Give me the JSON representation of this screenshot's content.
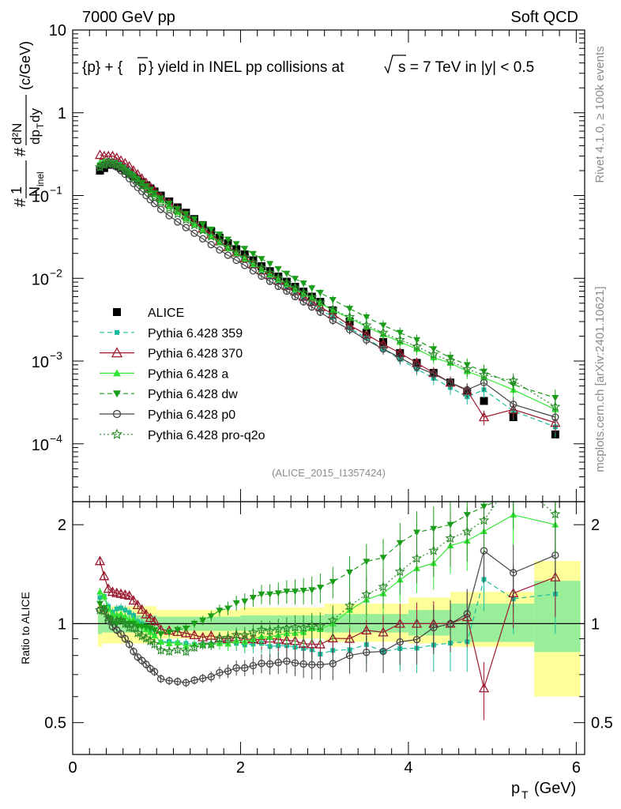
{
  "header": {
    "left": "7000 GeV pp",
    "right": "Soft QCD",
    "side_top": "Rivet 4.1.0, ≥ 100k events",
    "side_bottom": "mcplots.cern.ch [arXiv:2401.10621]",
    "analysis_id": "(ALICE_2015_I1357424)"
  },
  "colors": {
    "ALICE": "#000000",
    "p359": "#1abc9c",
    "p370": "#9b1b30",
    "pa": "#33e633",
    "pdw": "#1a9e1a",
    "pp0": "#444444",
    "pq2o": "#2a8a2a",
    "band_yellow": "#ffff99",
    "band_green": "#99ee99"
  },
  "chart_data": [
    {
      "type": "scatter",
      "panel": "main",
      "title": "{p} + {p̅} yield in INEL pp collisions at √s = 7 TeV in |y| < 0.5",
      "title_parts": {
        "a": "{p} + {",
        "b": "p",
        "c": "} yield in INEL pp collisions at",
        "d": "s =  7 TeV in |y| < 0.5"
      },
      "xlabel": "p_T (GeV)",
      "xlabel_parts": {
        "p": "p",
        "sub": "T",
        "unit": "(GeV)"
      },
      "ylabel": "1/N_inel d²N/dp_T dy (c/GeV)",
      "ylabel_parts": {
        "one": "1",
        "ninel": "N",
        "ninel_sub": "inel",
        "d2n": "d²N",
        "dpt": "dp",
        "dpt_sub": "T",
        "dy": "dy",
        "unit": "(c/GeV)",
        "hash": "#"
      },
      "xlim": [
        0,
        6.1
      ],
      "ylim": [
        2e-05,
        10
      ],
      "yscale": "log",
      "yticks": [
        {
          "v": 10,
          "t": "10"
        },
        {
          "v": 1,
          "t": "1"
        },
        {
          "v": 0.1,
          "b": "10",
          "e": "−1"
        },
        {
          "v": 0.01,
          "b": "10",
          "e": "−2"
        },
        {
          "v": 0.001,
          "b": "10",
          "e": "−3"
        },
        {
          "v": 0.0001,
          "b": "10",
          "e": "−4"
        }
      ],
      "x": [
        0.325,
        0.375,
        0.425,
        0.475,
        0.525,
        0.575,
        0.625,
        0.675,
        0.725,
        0.775,
        0.825,
        0.875,
        0.925,
        0.975,
        1.05,
        1.15,
        1.25,
        1.35,
        1.45,
        1.55,
        1.65,
        1.75,
        1.85,
        1.95,
        2.05,
        2.15,
        2.25,
        2.35,
        2.45,
        2.55,
        2.65,
        2.75,
        2.85,
        2.95,
        3.1,
        3.3,
        3.5,
        3.7,
        3.9,
        4.1,
        4.3,
        4.5,
        4.7,
        4.9,
        5.25,
        5.75
      ],
      "series": [
        {
          "name": "ALICE",
          "key": "ALICE",
          "marker": "square",
          "line": "none",
          "values": [
            0.2,
            0.215,
            0.235,
            0.24,
            0.23,
            0.215,
            0.2,
            0.185,
            0.17,
            0.158,
            0.145,
            0.133,
            0.122,
            0.112,
            0.1,
            0.085,
            0.072,
            0.062,
            0.052,
            0.044,
            0.037,
            0.031,
            0.0265,
            0.0225,
            0.0195,
            0.0165,
            0.014,
            0.0122,
            0.0105,
            0.0091,
            0.0079,
            0.0069,
            0.006,
            0.0052,
            0.0041,
            0.003,
            0.0022,
            0.0017,
            0.00125,
            0.00095,
            0.00072,
            0.00055,
            0.00042,
            0.00033,
            0.00021,
            0.00013
          ]
        },
        {
          "name": "Pythia 6.428 359",
          "key": "p359",
          "marker": "smallsquare",
          "line": "dash",
          "values": [
            0.24,
            0.26,
            0.265,
            0.26,
            0.255,
            0.24,
            0.22,
            0.2,
            0.18,
            0.16,
            0.145,
            0.13,
            0.115,
            0.103,
            0.088,
            0.075,
            0.063,
            0.054,
            0.045,
            0.038,
            0.032,
            0.027,
            0.023,
            0.0196,
            0.0168,
            0.0143,
            0.0122,
            0.0104,
            0.009,
            0.0078,
            0.0067,
            0.0058,
            0.005,
            0.0042,
            0.0034,
            0.0025,
            0.0019,
            0.0014,
            0.00105,
            0.0008,
            0.00062,
            0.00048,
            0.00037,
            0.00045,
            0.00025,
            0.00016
          ]
        },
        {
          "name": "Pythia 6.428 370",
          "key": "p370",
          "marker": "triangle-open",
          "line": "solid",
          "values": [
            0.31,
            0.3,
            0.3,
            0.3,
            0.285,
            0.265,
            0.245,
            0.225,
            0.2,
            0.18,
            0.16,
            0.142,
            0.127,
            0.114,
            0.096,
            0.081,
            0.068,
            0.058,
            0.048,
            0.04,
            0.034,
            0.028,
            0.0238,
            0.0205,
            0.0175,
            0.0148,
            0.0125,
            0.011,
            0.0094,
            0.0081,
            0.007,
            0.006,
            0.0052,
            0.0045,
            0.0037,
            0.0027,
            0.0021,
            0.0016,
            0.00125,
            0.00095,
            0.00072,
            0.00055,
            0.00044,
            0.00021,
            0.00026,
            0.00018
          ]
        },
        {
          "name": "Pythia 6.428 a",
          "key": "pa",
          "marker": "triangle",
          "line": "solid",
          "values": [
            0.25,
            0.26,
            0.26,
            0.255,
            0.245,
            0.23,
            0.21,
            0.19,
            0.175,
            0.158,
            0.143,
            0.128,
            0.115,
            0.103,
            0.088,
            0.074,
            0.063,
            0.053,
            0.045,
            0.038,
            0.032,
            0.027,
            0.023,
            0.02,
            0.0172,
            0.0148,
            0.0128,
            0.0111,
            0.0097,
            0.0085,
            0.0074,
            0.0065,
            0.0058,
            0.005,
            0.0041,
            0.0033,
            0.0026,
            0.0021,
            0.0017,
            0.0014,
            0.0011,
            0.00095,
            0.00075,
            0.00063,
            0.00045,
            0.00026
          ]
        },
        {
          "name": "Pythia 6.428 dw",
          "key": "pdw",
          "marker": "triangle-down",
          "line": "dash",
          "values": [
            0.23,
            0.24,
            0.245,
            0.24,
            0.23,
            0.22,
            0.2,
            0.185,
            0.17,
            0.155,
            0.142,
            0.13,
            0.118,
            0.107,
            0.093,
            0.08,
            0.069,
            0.06,
            0.052,
            0.045,
            0.039,
            0.034,
            0.0295,
            0.026,
            0.0228,
            0.0198,
            0.0172,
            0.015,
            0.013,
            0.0114,
            0.0099,
            0.0087,
            0.0076,
            0.0067,
            0.0055,
            0.0043,
            0.0034,
            0.0027,
            0.0022,
            0.0018,
            0.0014,
            0.0011,
            0.0009,
            0.00075,
            0.00052,
            0.00036
          ]
        },
        {
          "name": "Pythia 6.428 p0",
          "key": "pp0",
          "marker": "circle-open",
          "line": "solid",
          "values": [
            0.22,
            0.235,
            0.24,
            0.235,
            0.22,
            0.2,
            0.18,
            0.16,
            0.14,
            0.125,
            0.112,
            0.1,
            0.089,
            0.08,
            0.068,
            0.057,
            0.048,
            0.041,
            0.035,
            0.03,
            0.0255,
            0.022,
            0.019,
            0.0165,
            0.0143,
            0.0123,
            0.0106,
            0.0092,
            0.008,
            0.007,
            0.006,
            0.0052,
            0.0045,
            0.0039,
            0.0031,
            0.0024,
            0.0018,
            0.0014,
            0.0011,
            0.00085,
            0.0007,
            0.00055,
            0.00045,
            0.00055,
            0.0003,
            0.00021
          ]
        },
        {
          "name": "Pythia 6.428 pro-q2o",
          "key": "pq2o",
          "marker": "star",
          "line": "dot",
          "values": [
            0.22,
            0.235,
            0.245,
            0.245,
            0.235,
            0.22,
            0.2,
            0.18,
            0.165,
            0.148,
            0.133,
            0.12,
            0.108,
            0.097,
            0.083,
            0.07,
            0.06,
            0.051,
            0.044,
            0.038,
            0.032,
            0.028,
            0.024,
            0.0208,
            0.018,
            0.0155,
            0.0134,
            0.0116,
            0.0101,
            0.0088,
            0.0077,
            0.0067,
            0.0059,
            0.0051,
            0.0042,
            0.0034,
            0.0027,
            0.0022,
            0.0018,
            0.0015,
            0.0012,
            0.001,
            0.0008,
            0.00068,
            0.00058,
            0.00028
          ]
        }
      ],
      "legend": [
        "ALICE",
        "Pythia 6.428 359",
        "Pythia 6.428 370",
        "Pythia 6.428 a",
        "Pythia 6.428 dw",
        "Pythia 6.428 p0",
        "Pythia 6.428 pro-q2o"
      ]
    },
    {
      "type": "scatter",
      "panel": "ratio",
      "ylabel": "Ratio to ALICE",
      "xlabel": "p_T (GeV)",
      "xlim": [
        0,
        6.1
      ],
      "ylim": [
        0.4,
        2.35
      ],
      "yscale": "log",
      "yticks": [
        {
          "v": 0.5,
          "t": "0.5"
        },
        {
          "v": 1,
          "t": "1"
        },
        {
          "v": 2,
          "t": "2"
        }
      ],
      "xticks": [
        {
          "v": 0,
          "t": "0"
        },
        {
          "v": 2,
          "t": "2"
        },
        {
          "v": 4,
          "t": "4"
        },
        {
          "v": 6,
          "t": "6"
        }
      ],
      "reference_line": 1,
      "uncertainty_bands": [
        {
          "x0": 0.3,
          "x1": 0.35,
          "yellow": [
            0.85,
            1.15
          ],
          "green": [
            0.93,
            1.07
          ]
        },
        {
          "x0": 0.35,
          "x1": 1.0,
          "yellow": [
            0.87,
            1.13
          ],
          "green": [
            0.94,
            1.06
          ]
        },
        {
          "x0": 1.0,
          "x1": 2.0,
          "yellow": [
            0.9,
            1.1
          ],
          "green": [
            0.95,
            1.05
          ]
        },
        {
          "x0": 2.0,
          "x1": 3.0,
          "yellow": [
            0.9,
            1.12
          ],
          "green": [
            0.95,
            1.06
          ]
        },
        {
          "x0": 3.0,
          "x1": 4.0,
          "yellow": [
            0.88,
            1.15
          ],
          "green": [
            0.94,
            1.07
          ]
        },
        {
          "x0": 4.0,
          "x1": 4.5,
          "yellow": [
            0.87,
            1.2
          ],
          "green": [
            0.92,
            1.1
          ]
        },
        {
          "x0": 4.5,
          "x1": 5.5,
          "yellow": [
            0.85,
            1.25
          ],
          "green": [
            0.88,
            1.15
          ]
        },
        {
          "x0": 5.5,
          "x1": 6.05,
          "yellow": [
            0.6,
            1.55
          ],
          "green": [
            0.82,
            1.35
          ]
        }
      ]
    }
  ]
}
